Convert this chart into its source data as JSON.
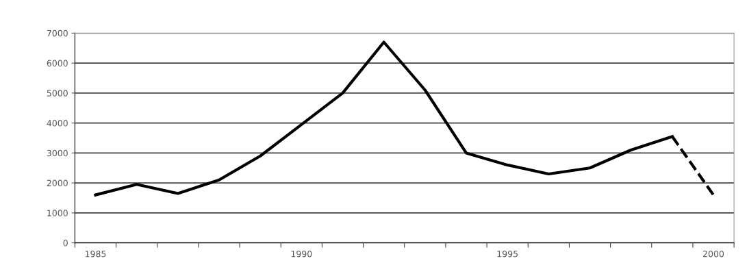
{
  "chart_data": {
    "type": "line",
    "x": [
      1985,
      1986,
      1987,
      1988,
      1989,
      1990,
      1991,
      1992,
      1993,
      1994,
      1995,
      1996,
      1997,
      1998,
      1999
    ],
    "series": [
      {
        "color": "#000000",
        "line_style": "solid",
        "values": [
          1600,
          1950,
          1650,
          2100,
          2900,
          3950,
          5000,
          6700,
          5100,
          3000,
          2600,
          2300,
          2500,
          3100,
          3550
        ]
      },
      {
        "color": "#000000",
        "line_style": "dashed",
        "x": [
          1999,
          2000
        ],
        "values": [
          3550,
          1600
        ]
      }
    ],
    "xlim": [
      1984.5,
      2000.5
    ],
    "xticks": [
      1985,
      1990,
      1995,
      2000,
      {
        "value": 1984.5,
        "label": null
      },
      {
        "value": 1985.5,
        "label": null
      },
      {
        "value": 1986.5,
        "label": null
      },
      {
        "value": 1987.5,
        "label": null
      },
      {
        "value": 1988.5,
        "label": null
      },
      {
        "value": 1989.5,
        "label": null
      },
      {
        "value": 1990.5,
        "label": null
      },
      {
        "value": 1991.5,
        "label": null
      },
      {
        "value": 1992.5,
        "label": null
      },
      {
        "value": 1993.5,
        "label": null
      },
      {
        "value": 1994.5,
        "label": null
      },
      {
        "value": 1995.5,
        "label": null
      },
      {
        "value": 1996.5,
        "label": null
      },
      {
        "value": 1997.5,
        "label": null
      },
      {
        "value": 1998.5,
        "label": null
      },
      {
        "value": 1999.5,
        "label": null
      },
      {
        "value": 2000.5,
        "label": null
      }
    ],
    "ylim": [
      0,
      7000
    ],
    "yticks": [
      0,
      1000,
      2000,
      3000,
      4000,
      5000,
      6000,
      7000
    ],
    "grid": "y",
    "marker": "none"
  }
}
